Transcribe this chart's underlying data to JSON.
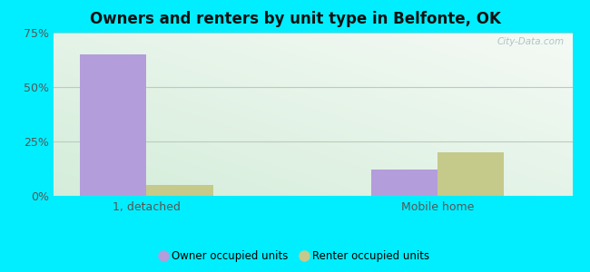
{
  "title": "Owners and renters by unit type in Belfonte, OK",
  "categories": [
    "1, detached",
    "Mobile home"
  ],
  "owner_values": [
    65.0,
    12.0
  ],
  "renter_values": [
    5.0,
    20.0
  ],
  "owner_color": "#b39ddb",
  "renter_color": "#c5c98a",
  "ylim": [
    0,
    75
  ],
  "yticks": [
    0,
    25,
    50,
    75
  ],
  "ytick_labels": [
    "0%",
    "25%",
    "50%",
    "75%"
  ],
  "legend_owner": "Owner occupied units",
  "legend_renter": "Renter occupied units",
  "bar_width": 0.32,
  "x_positions": [
    0.45,
    1.85
  ],
  "xlim": [
    0.0,
    2.5
  ],
  "outer_bg": "#00eeff",
  "watermark": "City-Data.com",
  "grid_color": "#ccddcc",
  "axis_label_color": "#555555",
  "title_color": "#111111",
  "title_fontsize": 12,
  "bg_left": "#d8eeda",
  "bg_right": "#eaf8f4"
}
